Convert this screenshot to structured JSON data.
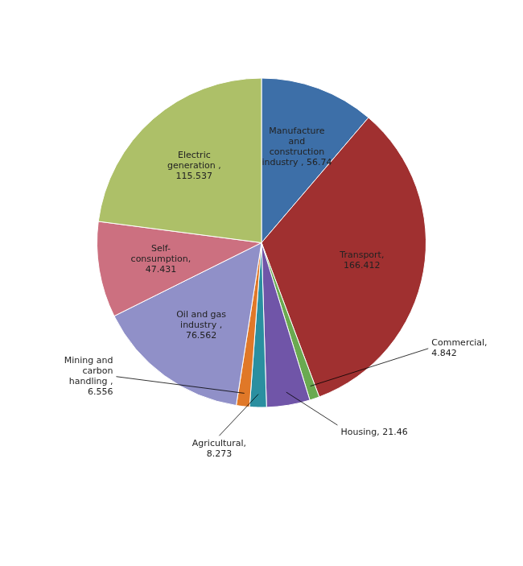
{
  "chart_data": {
    "type": "pie",
    "categories": [
      "Manufacture\nand\nconstruction\nindustry , 56.74",
      "Transport,\n166.412",
      "Commercial,\n4.842",
      "Housing, 21.46",
      "Agricultural,\n8.273",
      "Mining and\ncarbon\nhandling ,\n6.556",
      "Oil and gas\nindustry ,\n76.562",
      "Self-\nconsumption,\n47.431",
      "Electric\ngeneration ,\n115.537"
    ],
    "values": [
      56.74,
      166.412,
      4.842,
      21.46,
      8.273,
      6.556,
      76.562,
      47.431,
      115.537
    ],
    "colors": [
      "#3d6fa8",
      "#a03030",
      "#6aaa50",
      "#7055a8",
      "#2a8fa0",
      "#e07828",
      "#9090c8",
      "#cc7080",
      "#adc068"
    ]
  }
}
